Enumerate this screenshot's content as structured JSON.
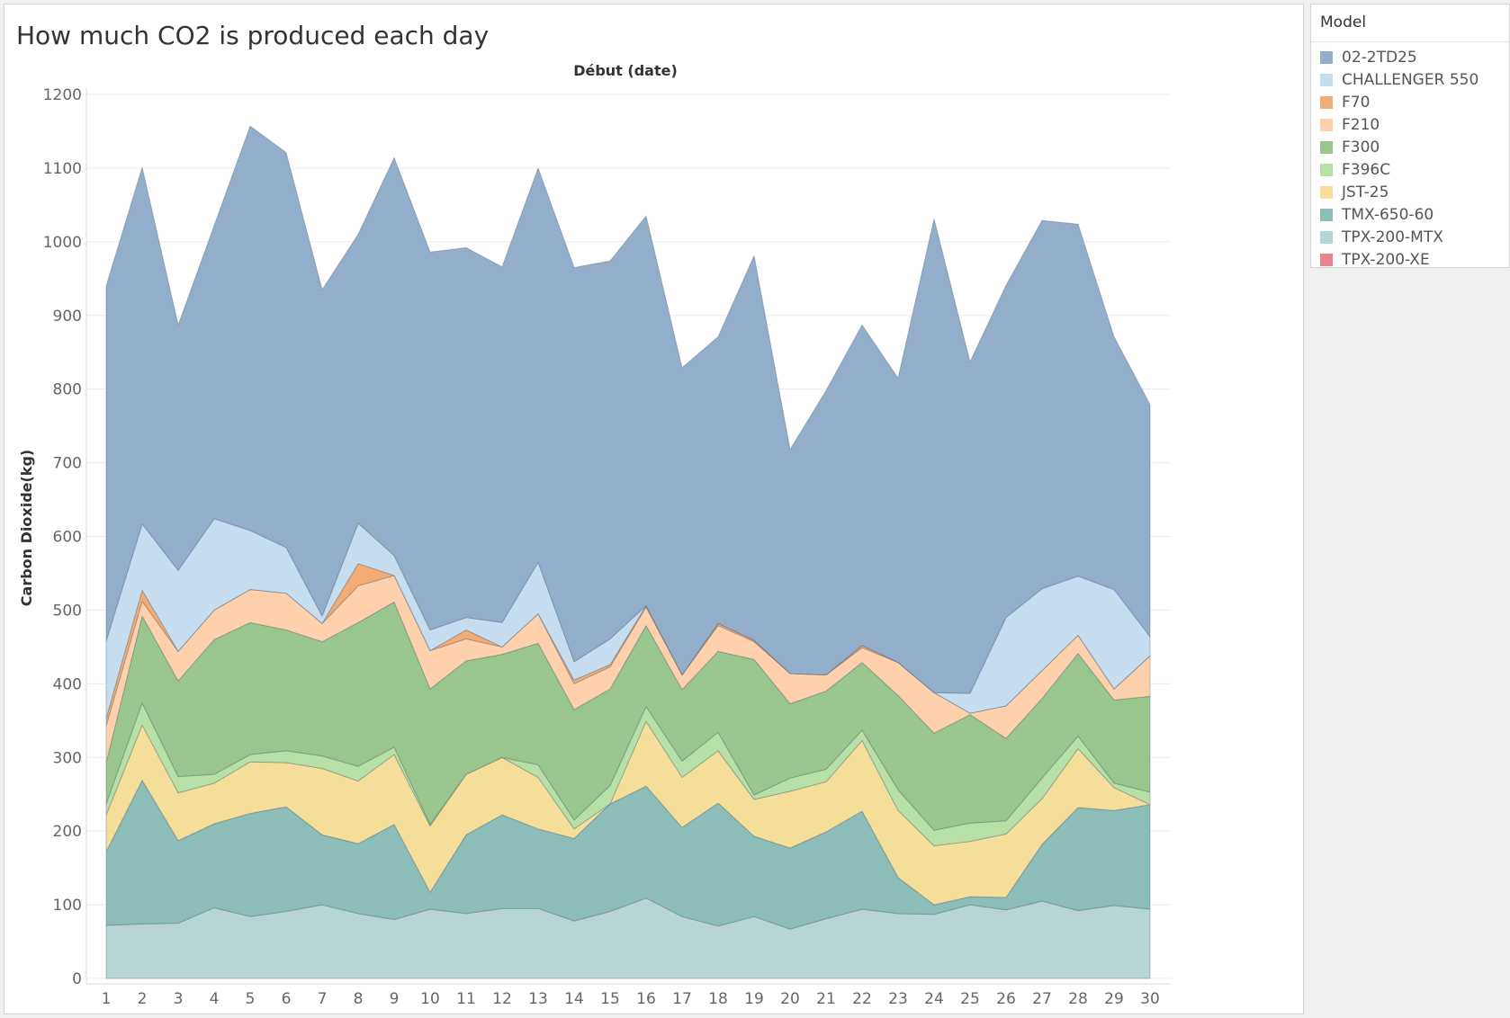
{
  "chart_data": {
    "type": "area",
    "stacked": true,
    "title": "How much CO2 is produced each day",
    "top_axis_label": "Début (date)",
    "ylabel": "Carbon Dioxide(kg)",
    "ylim": [
      0,
      1200
    ],
    "yticks": [
      0,
      100,
      200,
      300,
      400,
      500,
      600,
      700,
      800,
      900,
      1000,
      1100,
      1200
    ],
    "x": [
      1,
      2,
      3,
      4,
      5,
      6,
      7,
      8,
      9,
      10,
      11,
      12,
      13,
      14,
      15,
      16,
      17,
      18,
      19,
      20,
      21,
      22,
      23,
      24,
      25,
      26,
      27,
      28,
      29,
      30
    ],
    "grid": "horizontal",
    "legend_position": "right",
    "series": [
      {
        "name": "TPX-200-MTX",
        "color": "#b7d6d3",
        "values": [
          72,
          74,
          75,
          96,
          84,
          91,
          100,
          88,
          80,
          94,
          88,
          95,
          95,
          78,
          91,
          109,
          84,
          71,
          84,
          67,
          81,
          94,
          88,
          87,
          100,
          93,
          105,
          92,
          99,
          94
        ]
      },
      {
        "name": "TMX-650-60",
        "color": "#8cbdb9",
        "values": [
          100,
          195,
          112,
          114,
          140,
          142,
          95,
          95,
          129,
          23,
          107,
          127,
          108,
          112,
          146,
          152,
          121,
          167,
          109,
          110,
          118,
          133,
          49,
          13,
          11,
          17,
          77,
          140,
          129,
          142
        ]
      },
      {
        "name": "JST-25",
        "color": "#f5de99",
        "values": [
          50,
          75,
          65,
          55,
          70,
          60,
          90,
          85,
          95,
          90,
          82,
          78,
          70,
          13,
          0,
          88,
          68,
          71,
          50,
          77,
          68,
          96,
          91,
          80,
          75,
          86,
          62,
          80,
          31,
          0
        ]
      },
      {
        "name": "F396C",
        "color": "#b7e0a7",
        "values": [
          15,
          30,
          22,
          12,
          10,
          16,
          17,
          20,
          10,
          2,
          0,
          0,
          17,
          12,
          25,
          20,
          22,
          25,
          6,
          18,
          17,
          14,
          28,
          21,
          25,
          18,
          28,
          17,
          6,
          17
        ]
      },
      {
        "name": "F300",
        "color": "#98c68d",
        "values": [
          56,
          118,
          130,
          183,
          179,
          164,
          155,
          195,
          197,
          184,
          154,
          140,
          165,
          150,
          131,
          110,
          97,
          110,
          184,
          101,
          106,
          92,
          128,
          132,
          147,
          112,
          108,
          112,
          113,
          130
        ]
      },
      {
        "name": "F210",
        "color": "#fed1ac",
        "values": [
          50,
          20,
          40,
          40,
          45,
          50,
          25,
          50,
          36,
          52,
          30,
          10,
          40,
          35,
          30,
          25,
          20,
          35,
          24,
          41,
          22,
          20,
          45,
          55,
          2,
          44,
          38,
          25,
          15,
          55
        ]
      },
      {
        "name": "F70",
        "color": "#f3ac74",
        "values": [
          10,
          15,
          0,
          0,
          0,
          0,
          0,
          30,
          0,
          0,
          12,
          0,
          0,
          5,
          3,
          2,
          0,
          3,
          2,
          0,
          0,
          3,
          0,
          0,
          0,
          0,
          0,
          0,
          0,
          0
        ]
      },
      {
        "name": "CHALLENGER 550",
        "color": "#c6dcef",
        "values": [
          105,
          90,
          110,
          124,
          80,
          62,
          10,
          55,
          27,
          28,
          17,
          33,
          70,
          25,
          35,
          0,
          0,
          0,
          0,
          0,
          0,
          0,
          0,
          0,
          27,
          120,
          111,
          80,
          135,
          26
        ]
      },
      {
        "name": "02-2TD25",
        "color": "#93aecb",
        "values": [
          482,
          484,
          333,
          398,
          549,
          536,
          443,
          392,
          540,
          513,
          502,
          483,
          535,
          535,
          513,
          529,
          417,
          389,
          522,
          304,
          386,
          435,
          386,
          643,
          450,
          451,
          500,
          478,
          343,
          315
        ]
      },
      {
        "name": "TPX-200-XE",
        "color": "#e8858c",
        "values": [
          0,
          0,
          0,
          0,
          0,
          0,
          0,
          0,
          0,
          0,
          0,
          0,
          0,
          0,
          0,
          0,
          0,
          0,
          0,
          0,
          0,
          0,
          0,
          0,
          0,
          0,
          0,
          0,
          0,
          0
        ]
      }
    ]
  },
  "legend": {
    "title": "Model",
    "items": [
      {
        "label": "02-2TD25",
        "color": "#93aecb"
      },
      {
        "label": "CHALLENGER 550",
        "color": "#c6dcef"
      },
      {
        "label": "F70",
        "color": "#f3ac74"
      },
      {
        "label": "F210",
        "color": "#fed1ac"
      },
      {
        "label": "F300",
        "color": "#98c68d"
      },
      {
        "label": "F396C",
        "color": "#b7e0a7"
      },
      {
        "label": "JST-25",
        "color": "#f5de99"
      },
      {
        "label": "TMX-650-60",
        "color": "#8cbdb9"
      },
      {
        "label": "TPX-200-MTX",
        "color": "#b7d6d3"
      },
      {
        "label": "TPX-200-XE",
        "color": "#e8858c"
      }
    ]
  }
}
